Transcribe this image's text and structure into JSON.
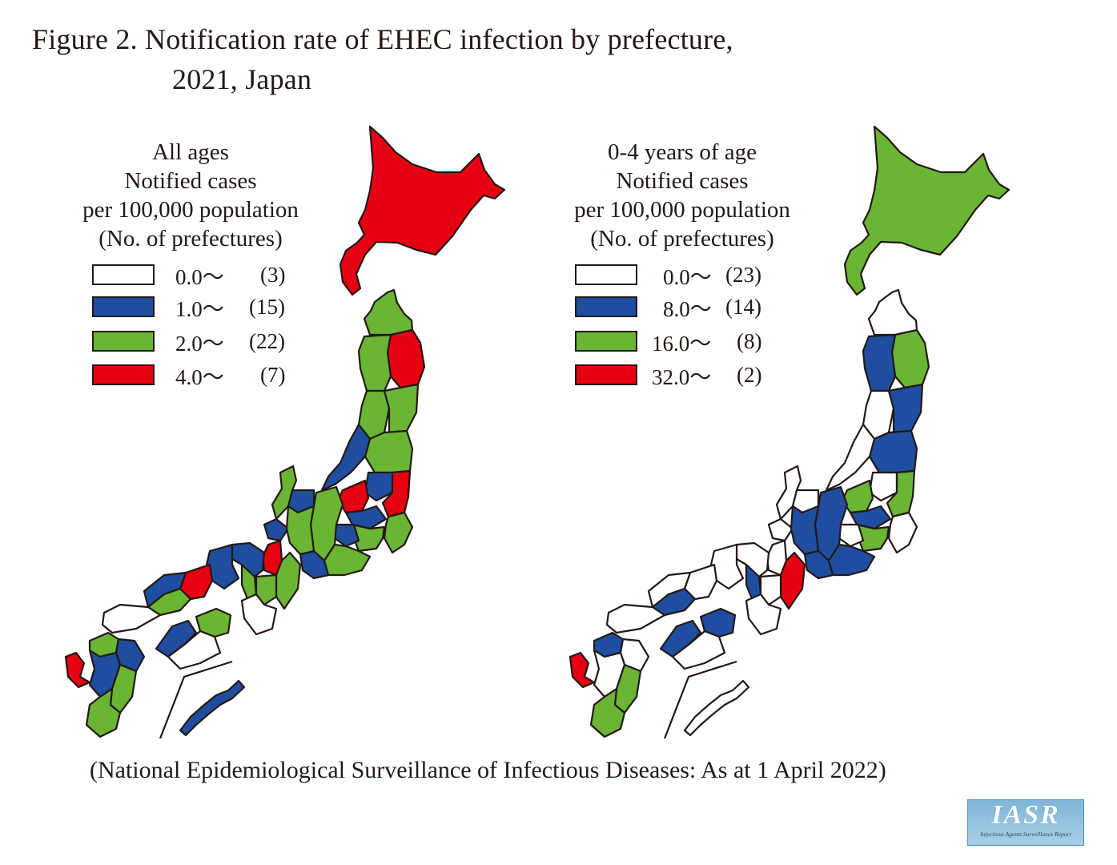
{
  "title": {
    "line1": "Figure 2. Notification rate of EHEC infection by prefecture,",
    "line2": "2021, Japan"
  },
  "colors": {
    "white": "#ffffff",
    "blue": "#1f4ea0",
    "green": "#6ab534",
    "red": "#e50012",
    "outline": "#231815"
  },
  "left_panel": {
    "heading": [
      "All ages",
      "Notified cases",
      "per 100,000 population",
      "(No. of prefectures)"
    ],
    "legend": [
      {
        "label": "0.0～",
        "count": "(3)",
        "color": "white"
      },
      {
        "label": "1.0～",
        "count": "(15)",
        "color": "blue"
      },
      {
        "label": "2.0～",
        "count": "(22)",
        "color": "green"
      },
      {
        "label": "4.0～",
        "count": "(7)",
        "color": "red"
      }
    ]
  },
  "right_panel": {
    "heading": [
      "0-4 years of age",
      "Notified cases",
      "per 100,000 population",
      "(No. of prefectures)"
    ],
    "legend": [
      {
        "label": "0.0～",
        "count": "(23)",
        "color": "white"
      },
      {
        "label": "8.0～",
        "count": "(14)",
        "color": "blue"
      },
      {
        "label": "16.0～",
        "count": "(8)",
        "color": "green"
      },
      {
        "label": "32.0～",
        "count": "(2)",
        "color": "red"
      }
    ]
  },
  "source": "(National Epidemiological Surveillance of Infectious Diseases: As at 1 April 2022)",
  "logo": {
    "big": "IASR",
    "small": "Infectious Agents Surveillance Report"
  }
}
